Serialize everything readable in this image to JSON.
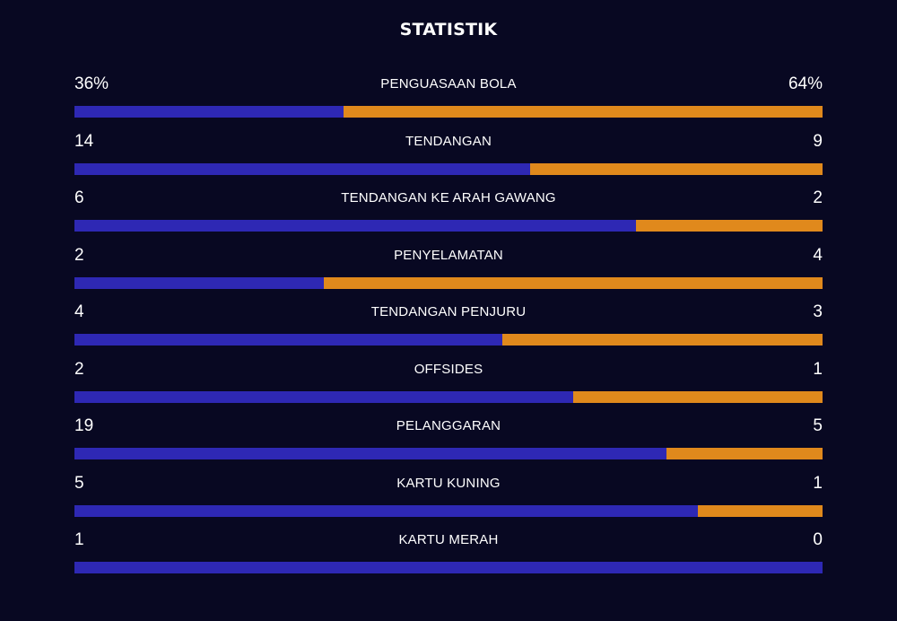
{
  "title": "STATISTIK",
  "colors": {
    "background": "#080822",
    "home_bar": "#2e28b4",
    "away_bar": "#e0891c",
    "text": "#ffffff"
  },
  "stats": [
    {
      "label": "PENGUASAAN BOLA",
      "home": "36%",
      "away": "64%",
      "home_value": 36,
      "away_value": 64
    },
    {
      "label": "TENDANGAN",
      "home": "14",
      "away": "9",
      "home_value": 14,
      "away_value": 9
    },
    {
      "label": "TENDANGAN KE ARAH GAWANG",
      "home": "6",
      "away": "2",
      "home_value": 6,
      "away_value": 2
    },
    {
      "label": "PENYELAMATAN",
      "home": "2",
      "away": "4",
      "home_value": 2,
      "away_value": 4
    },
    {
      "label": "TENDANGAN PENJURU",
      "home": "4",
      "away": "3",
      "home_value": 4,
      "away_value": 3
    },
    {
      "label": "OFFSIDES",
      "home": "2",
      "away": "1",
      "home_value": 2,
      "away_value": 1
    },
    {
      "label": "PELANGGARAN",
      "home": "19",
      "away": "5",
      "home_value": 19,
      "away_value": 5
    },
    {
      "label": "KARTU KUNING",
      "home": "5",
      "away": "1",
      "home_value": 5,
      "away_value": 1
    },
    {
      "label": "KARTU MERAH",
      "home": "1",
      "away": "0",
      "home_value": 1,
      "away_value": 0
    }
  ]
}
